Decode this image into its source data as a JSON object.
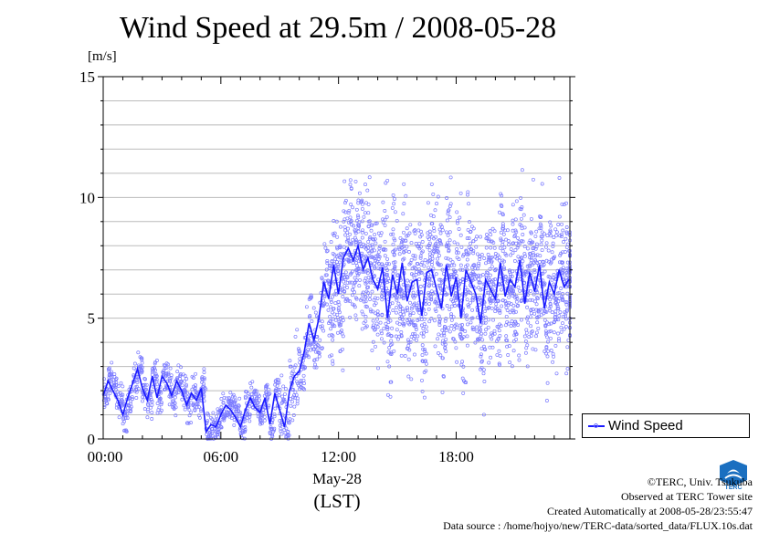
{
  "title": "Wind Speed at 29.5m / 2008-05-28",
  "unit_label": "[m/s]",
  "x_date_label": "May-28",
  "x_tz_label": "(LST)",
  "legend_label": "Wind Speed",
  "credits": {
    "copyright": "©TERC, Univ. Tsukuba",
    "observed": "Observed at TERC Tower site",
    "created": "Created Automatically at 2008-05-28/23:55:47",
    "source": "Data source : /home/hojyo/new/TERC-data/sorted_data/FLUX.10s.dat"
  },
  "logo_text": "TERC",
  "colors": {
    "line": "#1a1aff",
    "points": "#7b7bff",
    "grid": "#bbbbbb"
  },
  "chart_data": {
    "type": "line",
    "title": "Wind Speed at 29.5m / 2008-05-28",
    "ylabel": "[m/s]",
    "xlabel": "May-28 (LST)",
    "ylim": [
      0,
      15
    ],
    "xlim_hours": [
      0,
      23.8
    ],
    "yticks": [
      0,
      5,
      10,
      15
    ],
    "yticklabels": [
      "0",
      "5",
      "10",
      "15"
    ],
    "xticks_hours": [
      0,
      6,
      12,
      18
    ],
    "xticklabels": [
      "00:00",
      "06:00",
      "12:00",
      "18:00"
    ],
    "grid": true,
    "legend_position": "right",
    "series": [
      {
        "name": "Wind Speed",
        "hours": [
          0,
          0.25,
          0.5,
          0.75,
          1,
          1.25,
          1.5,
          1.75,
          2,
          2.25,
          2.5,
          2.75,
          3,
          3.25,
          3.5,
          3.75,
          4,
          4.25,
          4.5,
          4.75,
          5,
          5.25,
          5.5,
          5.75,
          6,
          6.25,
          6.5,
          6.75,
          7,
          7.25,
          7.5,
          7.75,
          8,
          8.25,
          8.5,
          8.75,
          9,
          9.25,
          9.5,
          9.75,
          10,
          10.25,
          10.5,
          10.75,
          11,
          11.25,
          11.5,
          11.75,
          12,
          12.25,
          12.5,
          12.75,
          13,
          13.25,
          13.5,
          13.75,
          14,
          14.25,
          14.5,
          14.75,
          15,
          15.25,
          15.5,
          15.75,
          16,
          16.25,
          16.5,
          16.75,
          17,
          17.25,
          17.5,
          17.75,
          18,
          18.25,
          18.5,
          18.75,
          19,
          19.25,
          19.5,
          19.75,
          20,
          20.25,
          20.5,
          20.75,
          21,
          21.25,
          21.5,
          21.75,
          22,
          22.25,
          22.5,
          22.75,
          23,
          23.25,
          23.5,
          23.75
        ],
        "values": [
          1.8,
          2.4,
          2.0,
          1.6,
          1.0,
          1.7,
          2.3,
          2.9,
          2.1,
          1.6,
          2.6,
          1.7,
          2.6,
          2.3,
          1.8,
          2.4,
          2.0,
          1.4,
          1.9,
          1.6,
          2.1,
          0.3,
          0.6,
          0.5,
          1.0,
          1.4,
          1.2,
          0.9,
          0.5,
          1.2,
          1.7,
          1.3,
          1.1,
          1.7,
          0.6,
          1.9,
          1.2,
          0.5,
          2.0,
          2.6,
          2.8,
          3.6,
          4.8,
          4.1,
          5.0,
          6.5,
          5.8,
          7.2,
          6.0,
          7.5,
          7.9,
          7.4,
          8.0,
          7.0,
          7.5,
          6.6,
          6.2,
          7.1,
          5.0,
          6.8,
          6.0,
          7.3,
          5.7,
          6.5,
          6.6,
          5.1,
          6.9,
          7.0,
          6.2,
          5.4,
          7.2,
          5.9,
          6.7,
          5.0,
          7.0,
          6.5,
          6.0,
          4.8,
          6.6,
          6.2,
          5.8,
          7.3,
          5.9,
          6.6,
          6.3,
          7.4,
          5.6,
          6.9,
          6.1,
          7.2,
          5.4,
          6.5,
          6.0,
          7.0,
          6.3,
          6.6
        ]
      }
    ]
  }
}
